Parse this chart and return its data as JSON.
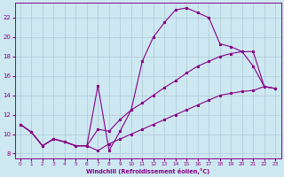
{
  "xlabel": "Windchill (Refroidissement éolien,°C)",
  "bg_color": "#cde8f0",
  "line_color": "#880088",
  "xlim": [
    -0.5,
    23.5
  ],
  "ylim": [
    7.5,
    23.5
  ],
  "xticks": [
    0,
    1,
    2,
    3,
    4,
    5,
    6,
    7,
    8,
    9,
    10,
    11,
    12,
    13,
    14,
    15,
    16,
    17,
    18,
    19,
    20,
    21,
    22,
    23
  ],
  "yticks": [
    8,
    10,
    12,
    14,
    16,
    18,
    20,
    22
  ],
  "grid_color": "#b0c8d8",
  "line1_x": [
    0,
    1,
    2,
    3,
    4,
    5,
    6,
    7,
    8,
    9,
    10,
    11,
    12,
    13,
    14,
    15,
    16,
    17,
    18,
    19,
    20,
    21,
    22,
    23
  ],
  "line1_y": [
    11.0,
    10.2,
    8.8,
    9.5,
    9.2,
    8.8,
    8.8,
    15.0,
    8.3,
    10.3,
    12.5,
    17.5,
    20.0,
    21.5,
    22.8,
    23.0,
    22.5,
    22.0,
    19.3,
    19.0,
    18.5,
    17.0,
    14.9,
    14.7
  ],
  "line2_x": [
    0,
    1,
    2,
    3,
    4,
    5,
    6,
    7,
    8,
    9,
    10,
    11,
    12,
    13,
    14,
    15,
    16,
    17,
    18,
    19,
    20,
    21,
    22,
    23
  ],
  "line2_y": [
    11.0,
    10.2,
    8.8,
    9.5,
    9.2,
    8.8,
    8.8,
    10.5,
    10.3,
    11.5,
    12.5,
    13.2,
    14.0,
    14.8,
    15.5,
    16.3,
    17.0,
    17.5,
    18.0,
    18.3,
    18.5,
    18.5,
    14.9,
    14.7
  ],
  "line3_x": [
    0,
    1,
    2,
    3,
    4,
    5,
    6,
    7,
    8,
    9,
    10,
    11,
    12,
    13,
    14,
    15,
    16,
    17,
    18,
    19,
    20,
    21,
    22,
    23
  ],
  "line3_y": [
    11.0,
    10.2,
    8.8,
    9.5,
    9.2,
    8.8,
    8.8,
    8.3,
    9.0,
    9.5,
    10.0,
    10.5,
    11.0,
    11.5,
    12.0,
    12.5,
    13.0,
    13.5,
    14.0,
    14.2,
    14.4,
    14.5,
    14.9,
    14.7
  ]
}
